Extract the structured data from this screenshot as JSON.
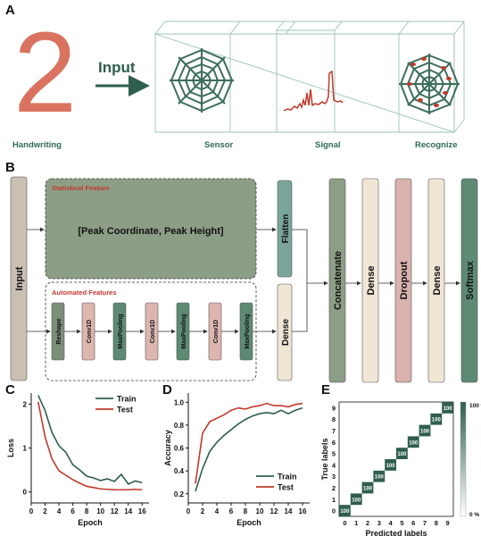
{
  "panelA": {
    "letter": "A",
    "digit": "2",
    "input_label": "Input",
    "captions": [
      "Handwriting",
      "Sensor",
      "Signal",
      "Recognize"
    ]
  },
  "panelB": {
    "letter": "B",
    "input_block": "Input",
    "statistical_title": "Statistical Feature",
    "statistical_text": "[Peak Coordinate, Peak Height]",
    "automated_title": "Automated Features",
    "automated_blocks": [
      "Reshape",
      "Conv1D",
      "MaxPooling",
      "Conv1D",
      "MaxPooling",
      "Conv1D",
      "MaxPooling"
    ],
    "flatten": "Flatten",
    "dense_side": "Dense",
    "pipeline": [
      "Concatenate",
      "Dense",
      "Dropout",
      "Dense",
      "Softmax"
    ],
    "colors": {
      "input": "#c9bfb2",
      "stat_panel": "#8d9e86",
      "reshape": "#7d8e7a",
      "conv": "#ddb6b0",
      "maxpool": "#5d8a74",
      "flatten": "#7aa59a",
      "dense": "#efe6d6",
      "concatenate": "#8d9e86",
      "dropout": "#d9b2ad",
      "softmax": "#5d8a74"
    }
  },
  "chart_data": [
    {
      "panel": "C",
      "type": "line",
      "xlabel": "Epoch",
      "ylabel": "Loss",
      "xlim": [
        0,
        17
      ],
      "ylim": [
        -0.25,
        2.25
      ],
      "xticks": [
        0,
        2,
        4,
        6,
        8,
        10,
        12,
        14,
        16
      ],
      "yticks": [
        0,
        1,
        2
      ],
      "legend": "top-right",
      "x": [
        1,
        2,
        3,
        4,
        5,
        6,
        7,
        8,
        9,
        10,
        11,
        12,
        13,
        14,
        15,
        16
      ],
      "series": [
        {
          "name": "Train",
          "color": "#2e5e4e",
          "values": [
            2.2,
            1.85,
            1.35,
            1.05,
            0.9,
            0.62,
            0.5,
            0.36,
            0.32,
            0.26,
            0.3,
            0.24,
            0.4,
            0.18,
            0.25,
            0.21
          ]
        },
        {
          "name": "Test",
          "color": "#c0392b",
          "values": [
            2.05,
            1.25,
            0.75,
            0.48,
            0.38,
            0.28,
            0.2,
            0.13,
            0.1,
            0.07,
            0.06,
            0.05,
            0.05,
            0.05,
            0.06,
            0.05
          ]
        }
      ]
    },
    {
      "panel": "D",
      "type": "line",
      "xlabel": "Epoch",
      "ylabel": "Accuracy",
      "xlim": [
        0,
        17
      ],
      "ylim": [
        0.12,
        1.08
      ],
      "xticks": [
        0,
        2,
        4,
        6,
        8,
        10,
        12,
        14,
        16
      ],
      "yticks": [
        0.2,
        0.4,
        0.6,
        0.8,
        1.0
      ],
      "ytick_labels": [
        "0.2",
        "0.4",
        "0.6",
        "0.8",
        "1.0"
      ],
      "legend": "bottom-right",
      "x": [
        1,
        2,
        3,
        4,
        5,
        6,
        7,
        8,
        9,
        10,
        11,
        12,
        13,
        14,
        15,
        16
      ],
      "series": [
        {
          "name": "Train",
          "color": "#2e5e4e",
          "values": [
            0.22,
            0.42,
            0.57,
            0.65,
            0.71,
            0.76,
            0.81,
            0.85,
            0.88,
            0.9,
            0.91,
            0.9,
            0.93,
            0.9,
            0.93,
            0.95
          ]
        },
        {
          "name": "Test",
          "color": "#c0392b",
          "values": [
            0.29,
            0.73,
            0.83,
            0.86,
            0.89,
            0.93,
            0.95,
            0.94,
            0.96,
            0.97,
            0.99,
            0.97,
            0.97,
            0.96,
            0.98,
            0.99
          ]
        }
      ]
    },
    {
      "panel": "E",
      "type": "heatmap",
      "xlabel": "Predicted labels",
      "ylabel": "True labels",
      "categories": [
        "0",
        "1",
        "2",
        "3",
        "4",
        "5",
        "6",
        "7",
        "8",
        "9"
      ],
      "diagonal_values": [
        100,
        100,
        100,
        100,
        100,
        100,
        100,
        100,
        100,
        100
      ],
      "colorbar_labels": [
        "100 %",
        "0 %"
      ],
      "color_high": "#2e5e4e",
      "color_low": "#ffffff"
    }
  ],
  "panelC": {
    "letter": "C"
  },
  "panelD": {
    "letter": "D"
  },
  "panelE": {
    "letter": "E"
  }
}
